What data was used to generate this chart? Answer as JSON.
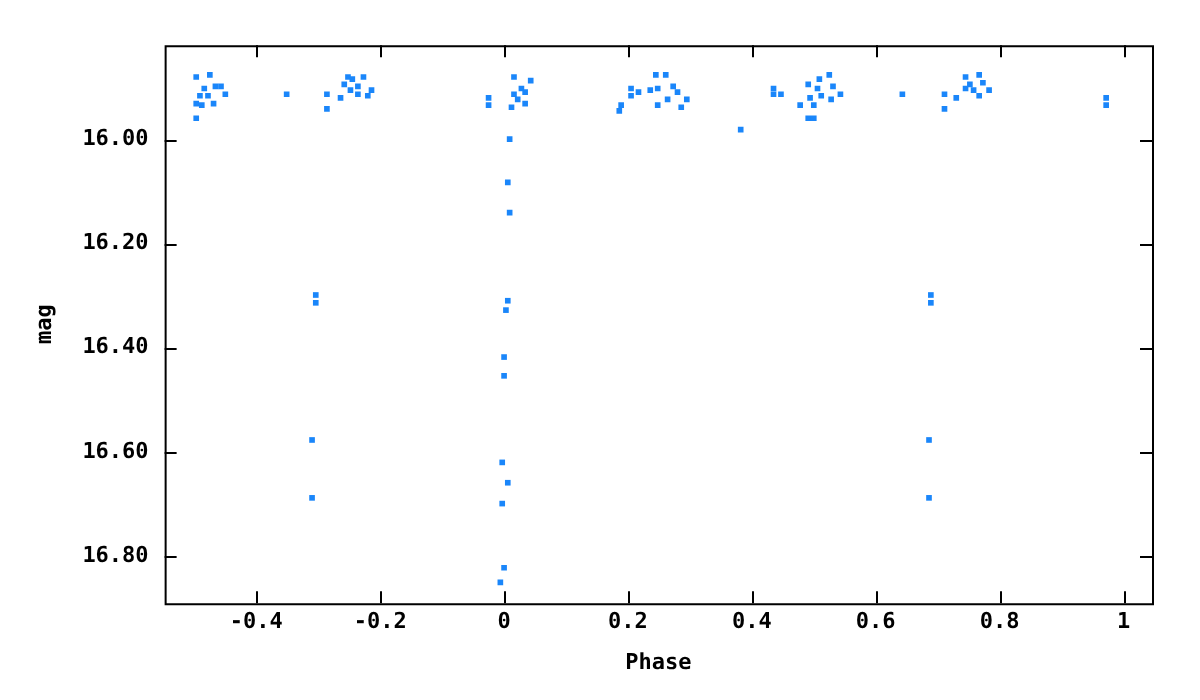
{
  "chart_data": {
    "type": "scatter",
    "xlabel": "Phase",
    "ylabel": "mag",
    "xlim": [
      -0.548,
      1.046
    ],
    "xticks": [
      {
        "value": -0.4,
        "label": "-0.4"
      },
      {
        "value": -0.2,
        "label": "-0.2"
      },
      0,
      {
        "value": 0.2,
        "label": "0.2"
      },
      {
        "value": 0.4,
        "label": "0.4"
      },
      {
        "value": 0.6,
        "label": "0.6"
      },
      {
        "value": 0.8,
        "label": "0.8"
      },
      1
    ],
    "ylim": [
      16.89,
      15.82
    ],
    "yticks": [
      {
        "value": 16,
        "label": "16.00"
      },
      {
        "value": 16.2,
        "label": "16.20"
      },
      {
        "value": 16.4,
        "label": "16.40"
      },
      {
        "value": 16.6,
        "label": "16.60"
      },
      {
        "value": 16.8,
        "label": "16.80"
      }
    ],
    "grid": false,
    "legend": false,
    "marker": "square",
    "series": [
      {
        "color": "#1a86fa",
        "x": [
          -0.497,
          -0.475,
          -0.484,
          -0.466,
          -0.457,
          -0.45,
          -0.478,
          -0.491,
          -0.497,
          -0.488,
          -0.469,
          -0.497,
          -0.351,
          -0.286,
          -0.286,
          -0.264,
          -0.252,
          -0.245,
          -0.227,
          -0.258,
          -0.236,
          -0.248,
          -0.214,
          -0.236,
          -0.22,
          -0.025,
          -0.025,
          0.016,
          0.043,
          0.028,
          0.016,
          0.034,
          0.022,
          0.034,
          0.012,
          0.186,
          0.189,
          0.205,
          0.205,
          0.217,
          0.245,
          0.248,
          0.261,
          0.248,
          0.264,
          0.236,
          0.273,
          0.28,
          0.295,
          0.286,
          0.382,
          0.435,
          0.435,
          0.447,
          0.509,
          0.525,
          0.491,
          0.506,
          0.531,
          0.543,
          0.512,
          0.528,
          0.494,
          0.478,
          0.5,
          0.491,
          0.5,
          0.643,
          0.711,
          0.711,
          0.73,
          0.745,
          0.767,
          0.752,
          0.773,
          0.758,
          0.783,
          0.767,
          0.745,
          0.972,
          0.972,
          0.009,
          0.006,
          0.009,
          0.006,
          0.003,
          0,
          0,
          -0.003,
          0.006,
          -0.003,
          0,
          -0.006,
          -0.304,
          -0.304,
          -0.31,
          -0.31,
          0.689,
          0.689,
          0.686,
          0.686
        ],
        "values": [
          15.881,
          15.877,
          15.903,
          15.899,
          15.899,
          15.914,
          15.917,
          15.917,
          15.932,
          15.935,
          15.932,
          15.96,
          15.914,
          15.914,
          15.942,
          15.921,
          15.881,
          15.885,
          15.881,
          15.895,
          15.899,
          15.906,
          15.906,
          15.914,
          15.917,
          15.921,
          15.935,
          15.881,
          15.888,
          15.903,
          15.914,
          15.91,
          15.924,
          15.932,
          15.939,
          15.946,
          15.935,
          15.903,
          15.917,
          15.91,
          15.877,
          15.903,
          15.877,
          15.935,
          15.924,
          15.906,
          15.899,
          15.91,
          15.924,
          15.939,
          15.982,
          15.903,
          15.914,
          15.914,
          15.885,
          15.877,
          15.895,
          15.903,
          15.899,
          15.914,
          15.917,
          15.924,
          15.921,
          15.935,
          15.935,
          15.96,
          15.96,
          15.914,
          15.914,
          15.942,
          15.921,
          15.881,
          15.877,
          15.895,
          15.892,
          15.906,
          15.906,
          15.917,
          15.903,
          15.921,
          15.935,
          16.0,
          16.083,
          16.141,
          16.31,
          16.328,
          16.418,
          16.454,
          16.62,
          16.659,
          16.699,
          16.822,
          16.85,
          16.299,
          16.314,
          16.577,
          16.688,
          16.299,
          16.314,
          16.577,
          16.688
        ]
      }
    ]
  }
}
